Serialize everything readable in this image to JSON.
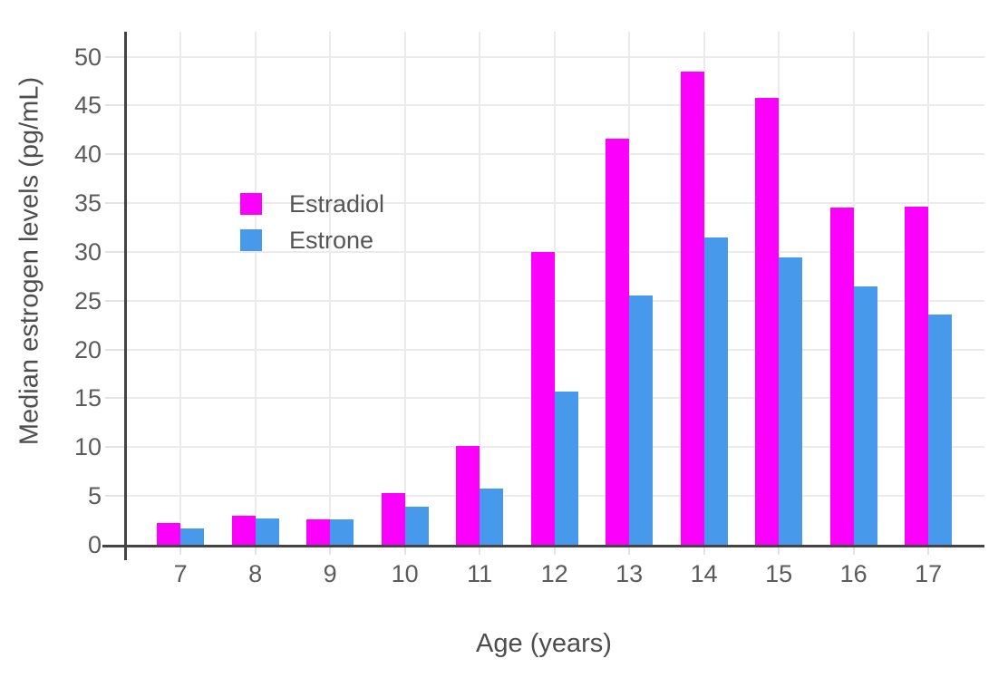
{
  "chart_data": {
    "type": "bar",
    "grouping": "grouped",
    "title": "",
    "xlabel": "Age (years)",
    "ylabel": "Median estrogen levels (pg/mL)",
    "categories": [
      "7",
      "8",
      "9",
      "10",
      "11",
      "12",
      "13",
      "14",
      "15",
      "16",
      "17"
    ],
    "series": [
      {
        "name": "Estradiol",
        "color": "#FB00FB",
        "values": [
          2.2,
          3.0,
          2.6,
          5.3,
          10.1,
          30.0,
          41.6,
          48.5,
          45.8,
          34.5,
          34.6
        ]
      },
      {
        "name": "Estrone",
        "color": "#4799EC",
        "values": [
          1.7,
          2.7,
          2.6,
          3.9,
          5.8,
          15.7,
          25.5,
          31.5,
          29.4,
          26.5,
          23.6
        ]
      }
    ],
    "ylim": [
      0,
      52.5
    ],
    "yticks": [
      0,
      5,
      10,
      15,
      20,
      25,
      30,
      35,
      40,
      45,
      50
    ],
    "grid": true,
    "legend_position": "inside-upper-left",
    "colors": {
      "background": "#FFFFFF",
      "gridline": "#EBEBEB",
      "tick_mark": "#E3E3E3",
      "axis_line": "#444444",
      "tick_label_text": "#5B5B5B",
      "axis_title_text": "#4D4D4D",
      "legend_text": "#555555"
    }
  }
}
